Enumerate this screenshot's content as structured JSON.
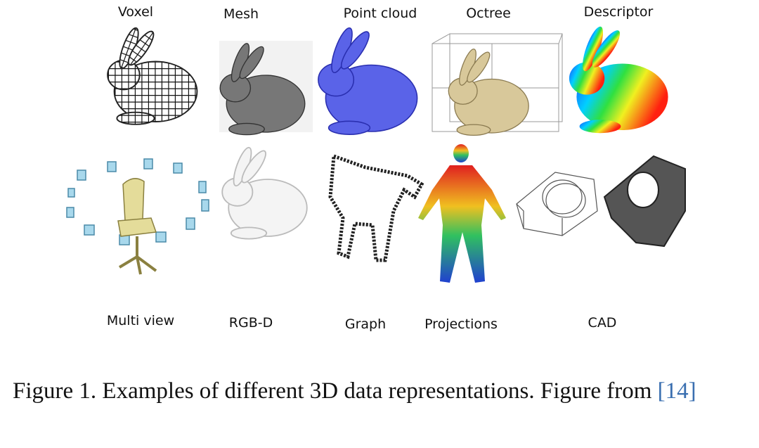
{
  "labels": {
    "top": [
      "Voxel",
      "Mesh",
      "Point cloud",
      "Octree",
      "Descriptor"
    ],
    "bottom": [
      "Multi view",
      "RGB-D",
      "Graph",
      "Projections",
      "CAD"
    ]
  },
  "caption": {
    "label": "Figure 1.",
    "text": "Examples of different 3D data representations. Figure from",
    "citation": "[14]"
  }
}
